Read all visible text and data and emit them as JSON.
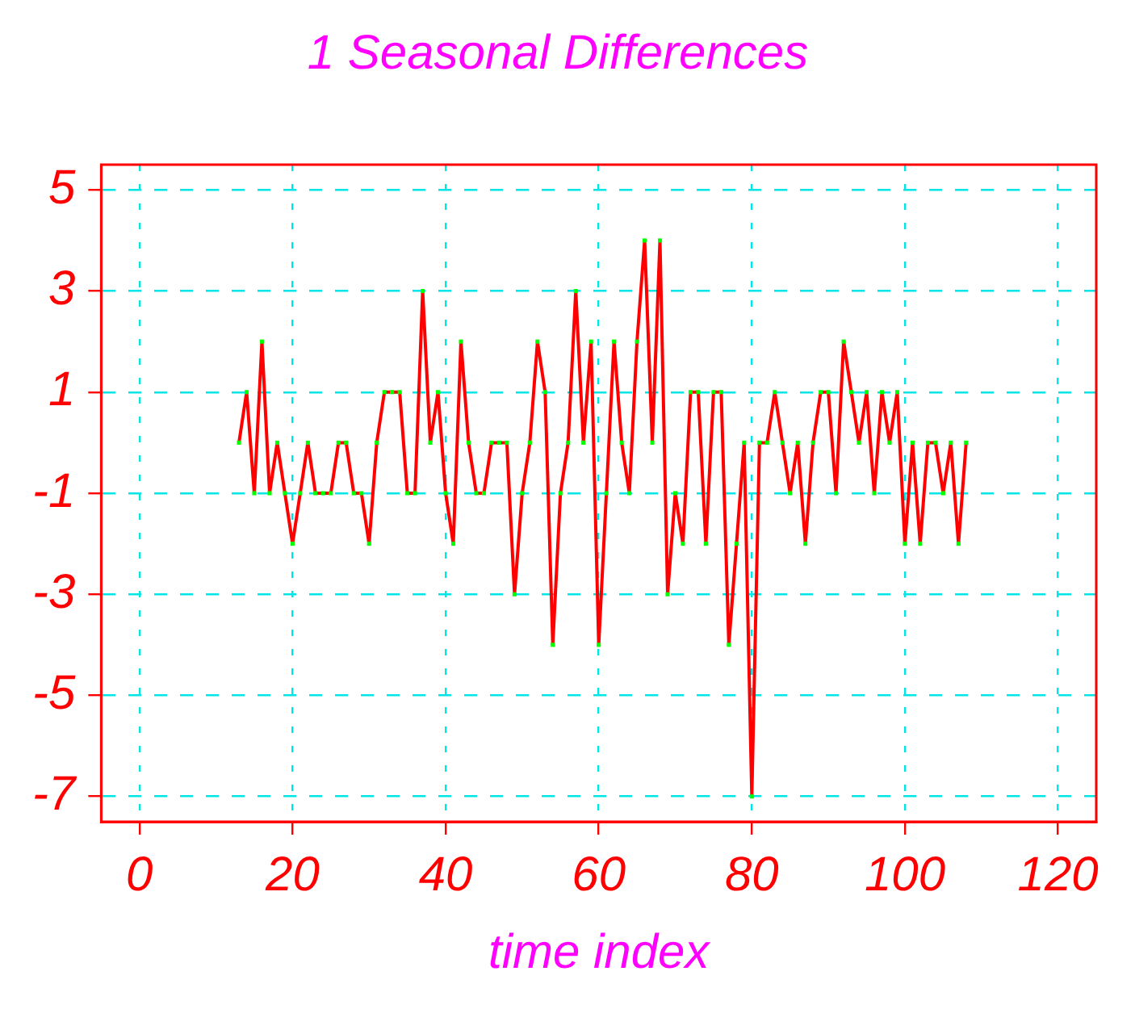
{
  "chart_data": {
    "type": "line",
    "title": "1 Seasonal Differences",
    "xlabel": "time index",
    "x": [
      13,
      14,
      15,
      16,
      17,
      18,
      19,
      20,
      21,
      22,
      23,
      24,
      25,
      26,
      27,
      28,
      29,
      30,
      31,
      32,
      33,
      34,
      35,
      36,
      37,
      38,
      39,
      40,
      41,
      42,
      43,
      44,
      45,
      46,
      47,
      48,
      49,
      50,
      51,
      52,
      53,
      54,
      55,
      56,
      57,
      58,
      59,
      60,
      61,
      62,
      63,
      64,
      65,
      66,
      67,
      68,
      69,
      70,
      71,
      72,
      73,
      74,
      75,
      76,
      77,
      78,
      79,
      80,
      81,
      82,
      83,
      84,
      85,
      86,
      87,
      88,
      89,
      90,
      91,
      92,
      93,
      94,
      95,
      96,
      97,
      98,
      99,
      100,
      101,
      102,
      103,
      104,
      105,
      106,
      107,
      108
    ],
    "series": [
      {
        "color": "#ff0000",
        "values": [
          0,
          1,
          -1,
          2,
          -1,
          0,
          -1,
          -2,
          -1,
          0,
          -1,
          -1,
          -1,
          0,
          0,
          -1,
          -1,
          -2,
          0,
          1,
          1,
          1,
          -1,
          -1,
          3,
          0,
          1,
          -1,
          -2,
          2,
          0,
          -1,
          -1,
          0,
          0,
          0,
          -3,
          -1,
          0,
          2,
          1,
          -4,
          -1,
          0,
          3,
          0,
          2,
          -4,
          -1,
          2,
          0,
          -1,
          2,
          4,
          0,
          4,
          -3,
          -1,
          -2,
          1,
          1,
          -2,
          1,
          1,
          -4,
          -2,
          0,
          -7,
          0,
          0,
          1,
          0,
          -1,
          0,
          -2,
          0,
          1,
          1,
          -1,
          2,
          1,
          0,
          1,
          -1,
          1,
          0,
          1,
          -2,
          0,
          -2,
          0,
          0,
          -1,
          0,
          -2,
          0
        ]
      }
    ],
    "xlim": [
      -5,
      125
    ],
    "xticks": [
      0,
      20,
      40,
      60,
      80,
      100,
      120
    ],
    "ylim": [
      -7.5,
      5.5
    ],
    "yticks": [
      -7,
      -5,
      -3,
      -1,
      1,
      3,
      5
    ],
    "grid": true,
    "marker": "square",
    "line_style": "solid"
  }
}
